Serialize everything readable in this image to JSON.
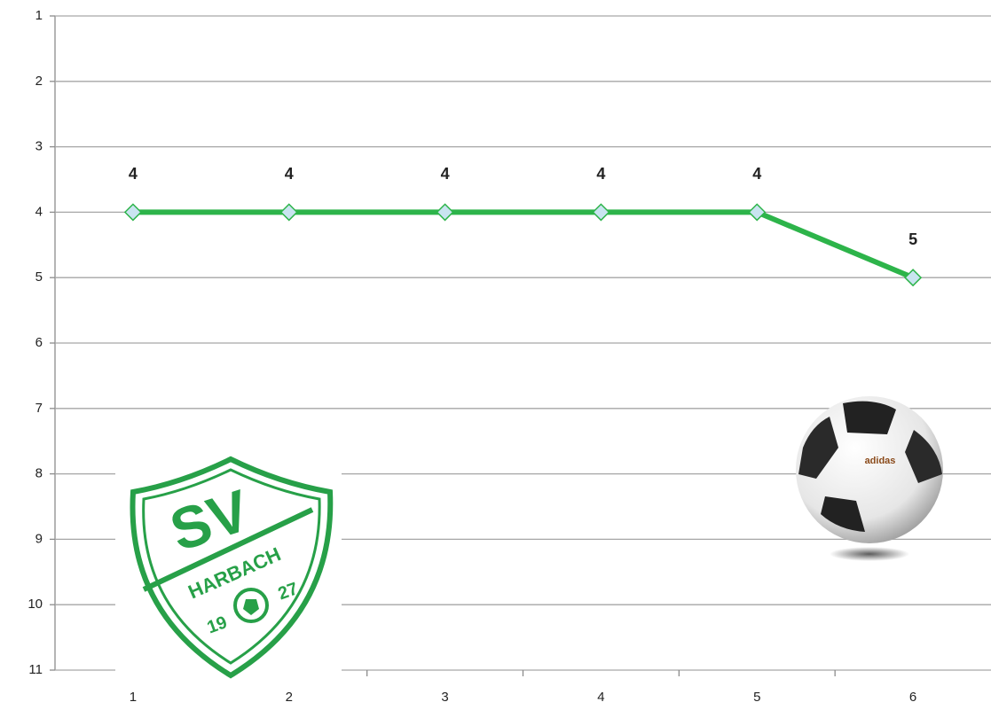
{
  "chart_data": {
    "type": "line",
    "categories": [
      "1",
      "2",
      "3",
      "4",
      "5",
      "6"
    ],
    "values": [
      4,
      4,
      4,
      4,
      4,
      5
    ],
    "color": "#2db44a",
    "marker_color": "#c9e4f0",
    "ylim": [
      1,
      11
    ],
    "y_inverted": true,
    "yticks": [
      1,
      2,
      3,
      4,
      5,
      6,
      7,
      8,
      9,
      10,
      11
    ],
    "grid": true
  },
  "logo": {
    "initials": "SV",
    "name": "HARBACH",
    "year_left": "19",
    "year_right": "27"
  },
  "ball": {
    "brand": "adidas"
  }
}
